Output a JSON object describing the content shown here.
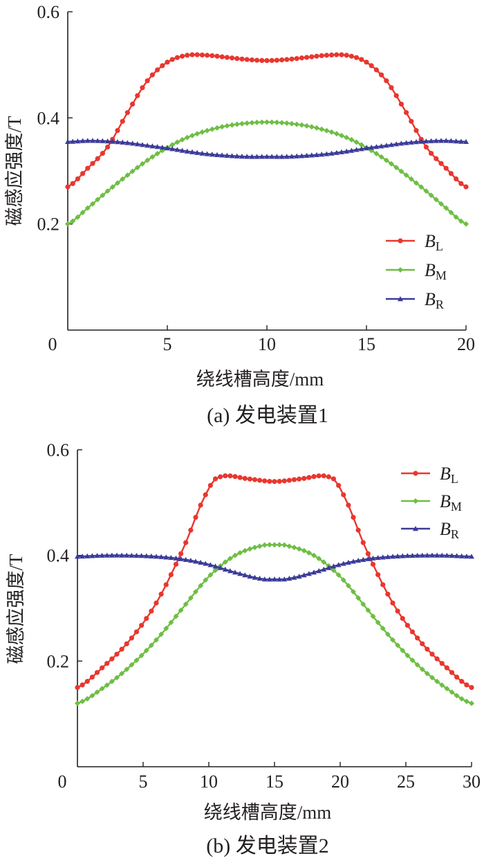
{
  "chart_data": [
    {
      "type": "line",
      "caption": "(a)  发电装置1",
      "xlabel": "绕线槽高度/mm",
      "ylabel": "磁感应强度/T",
      "xlim": [
        0,
        20
      ],
      "ylim": [
        0,
        0.6
      ],
      "xticks": [
        "0",
        "5",
        "10",
        "15",
        "20"
      ],
      "yticks": [
        "0.2",
        "0.4",
        "0.6"
      ],
      "legend_position": "right-middle",
      "series": [
        {
          "name": "B",
          "subscript": "L",
          "color": "#e8372f",
          "marker": "circle",
          "x": [
            0,
            1,
            2,
            3,
            4,
            5,
            6,
            7,
            8,
            9,
            10,
            11,
            12,
            13,
            14,
            15,
            16,
            17,
            18,
            19,
            20
          ],
          "y": [
            0.27,
            0.305,
            0.345,
            0.41,
            0.47,
            0.505,
            0.518,
            0.518,
            0.514,
            0.51,
            0.508,
            0.51,
            0.514,
            0.518,
            0.518,
            0.505,
            0.47,
            0.41,
            0.345,
            0.305,
            0.27
          ]
        },
        {
          "name": "B",
          "subscript": "M",
          "color": "#6ebe44",
          "marker": "diamond",
          "x": [
            0,
            1,
            2,
            3,
            4,
            5,
            6,
            7,
            8,
            9,
            10,
            11,
            12,
            13,
            14,
            15,
            16,
            17,
            18,
            19,
            20
          ],
          "y": [
            0.2,
            0.23,
            0.262,
            0.292,
            0.32,
            0.344,
            0.363,
            0.376,
            0.385,
            0.39,
            0.392,
            0.39,
            0.385,
            0.376,
            0.363,
            0.344,
            0.32,
            0.292,
            0.262,
            0.23,
            0.2
          ]
        },
        {
          "name": "B",
          "subscript": "R",
          "color": "#3b3b9a",
          "marker": "triangle",
          "x": [
            0,
            1,
            2,
            3,
            4,
            5,
            6,
            7,
            8,
            9,
            10,
            11,
            12,
            13,
            14,
            15,
            16,
            17,
            18,
            19,
            20
          ],
          "y": [
            0.355,
            0.357,
            0.356,
            0.353,
            0.348,
            0.343,
            0.337,
            0.332,
            0.329,
            0.327,
            0.327,
            0.327,
            0.329,
            0.332,
            0.337,
            0.343,
            0.348,
            0.353,
            0.356,
            0.357,
            0.355
          ]
        }
      ]
    },
    {
      "type": "line",
      "caption": "(b)  发电装置2",
      "xlabel": "绕线槽高度/mm",
      "ylabel": "磁感应强度/T",
      "xlim": [
        0,
        30
      ],
      "ylim": [
        0,
        0.6
      ],
      "xticks": [
        "0",
        "5",
        "10",
        "15",
        "20",
        "25",
        "30"
      ],
      "yticks": [
        "0.2",
        "0.4",
        "0.6"
      ],
      "legend_position": "top-right",
      "series": [
        {
          "name": "B",
          "subscript": "L",
          "color": "#e8372f",
          "marker": "circle",
          "x": [
            0,
            2,
            4,
            6,
            8,
            10,
            11,
            13,
            15,
            17,
            19,
            20,
            22,
            24,
            26,
            28,
            30
          ],
          "y": [
            0.15,
            0.19,
            0.24,
            0.31,
            0.41,
            0.525,
            0.55,
            0.545,
            0.54,
            0.545,
            0.55,
            0.525,
            0.41,
            0.31,
            0.24,
            0.19,
            0.15
          ]
        },
        {
          "name": "B",
          "subscript": "M",
          "color": "#6ebe44",
          "marker": "diamond",
          "x": [
            0,
            2,
            4,
            6,
            8,
            10,
            12,
            14,
            15,
            16,
            18,
            20,
            22,
            24,
            26,
            28,
            30
          ],
          "y": [
            0.12,
            0.15,
            0.19,
            0.24,
            0.3,
            0.36,
            0.4,
            0.418,
            0.42,
            0.418,
            0.4,
            0.36,
            0.3,
            0.24,
            0.19,
            0.15,
            0.12
          ]
        },
        {
          "name": "B",
          "subscript": "R",
          "color": "#3b3b9a",
          "marker": "triangle",
          "x": [
            0,
            2,
            4,
            6,
            8,
            10,
            12,
            14,
            15,
            16,
            18,
            20,
            22,
            24,
            26,
            28,
            30
          ],
          "y": [
            0.398,
            0.4,
            0.4,
            0.398,
            0.393,
            0.383,
            0.368,
            0.356,
            0.355,
            0.356,
            0.368,
            0.383,
            0.393,
            0.398,
            0.4,
            0.4,
            0.398
          ]
        }
      ]
    }
  ]
}
